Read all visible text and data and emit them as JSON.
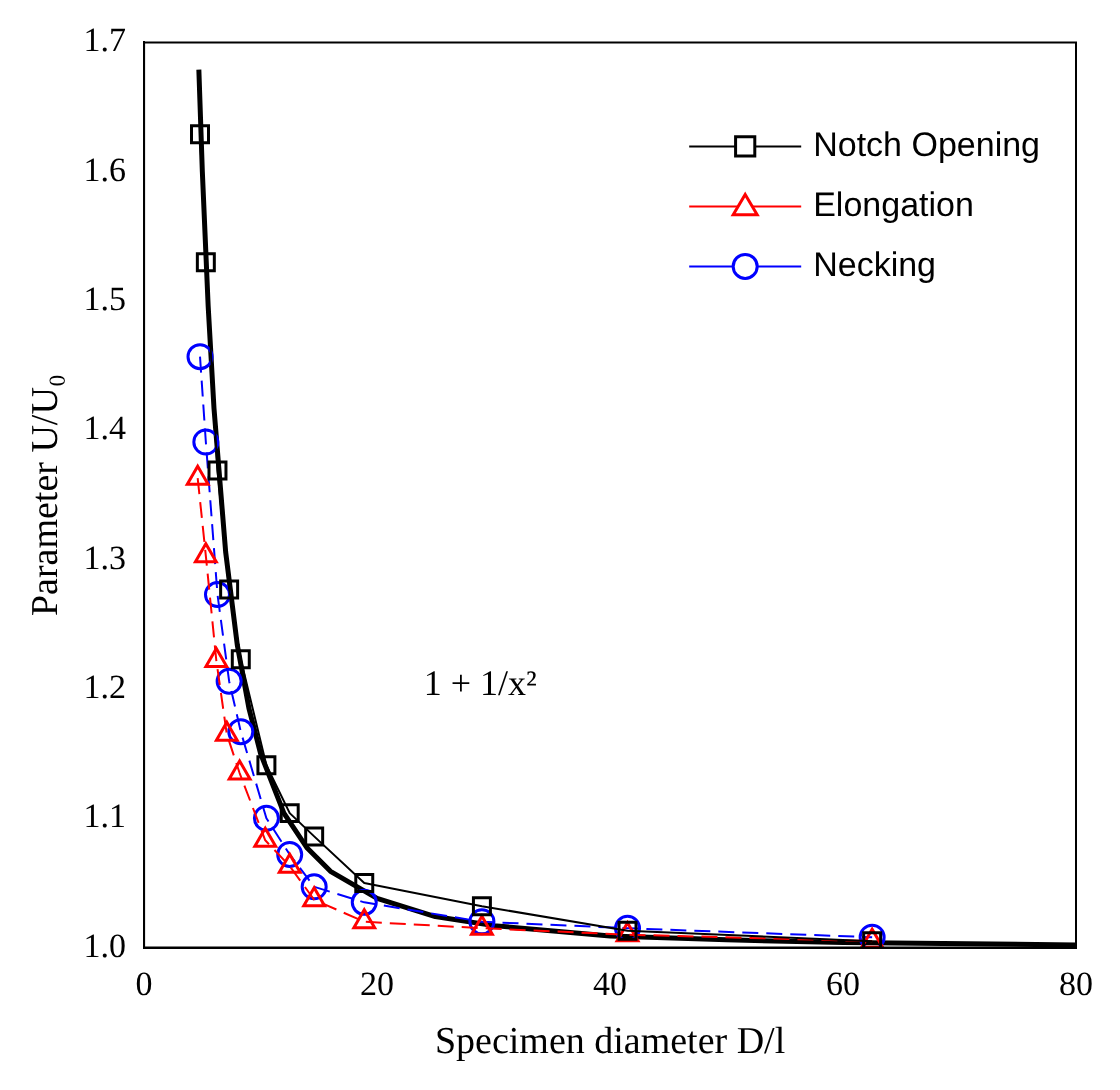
{
  "chart_data": {
    "type": "line",
    "xlabel": "Specimen diameter D/l",
    "ylabel": "Parameter U/U₀",
    "xlim": [
      0,
      80
    ],
    "xticks": [
      0,
      20,
      40,
      60,
      80
    ],
    "ylim": [
      1.0,
      1.7
    ],
    "yticks": [
      {
        "value": 1.0,
        "label": "1.0"
      },
      {
        "value": 1.1,
        "label": "1.1"
      },
      {
        "value": 1.2,
        "label": "1.2"
      },
      {
        "value": 1.3,
        "label": "1.3"
      },
      {
        "value": 1.4,
        "label": "1.4"
      },
      {
        "value": 1.5,
        "label": "1.5"
      },
      {
        "value": 1.6,
        "label": "1.6"
      },
      {
        "value": 1.7,
        "label": "1.7"
      }
    ],
    "grid": false,
    "legend": "top right",
    "annotations": [
      "1 + 1/x²"
    ],
    "series": [
      {
        "name": "Notch Opening",
        "color": "#000000",
        "marker": "square",
        "line_style": "solid",
        "x": [
          4.8,
          5.3,
          6.3,
          7.3,
          8.3,
          10.5,
          12.5,
          14.6,
          18.9,
          29,
          41.5,
          62.5
        ],
        "values": [
          1.629,
          1.53,
          1.369,
          1.277,
          1.223,
          1.141,
          1.104,
          1.086,
          1.05,
          1.032,
          1.013,
          1.005
        ]
      },
      {
        "name": "Elongation",
        "color": "#ff0000",
        "marker": "triangle",
        "line_style": "dashed",
        "x": [
          4.6,
          5.3,
          6.2,
          7.1,
          8.2,
          10.4,
          12.5,
          14.6,
          18.9,
          29,
          41.5,
          62.5
        ],
        "values": [
          1.363,
          1.303,
          1.222,
          1.165,
          1.135,
          1.083,
          1.063,
          1.037,
          1.02,
          1.015,
          1.01,
          1.005
        ]
      },
      {
        "name": "Necking",
        "color": "#0000ff",
        "marker": "circle",
        "line_style": "dashed",
        "x": [
          4.8,
          5.3,
          6.3,
          7.3,
          8.3,
          10.5,
          12.5,
          14.6,
          18.9,
          29,
          41.5,
          62.5
        ],
        "values": [
          1.457,
          1.391,
          1.273,
          1.206,
          1.167,
          1.1,
          1.072,
          1.047,
          1.035,
          1.02,
          1.015,
          1.008
        ]
      },
      {
        "color": "#000000",
        "marker": "none",
        "line_style": "solid",
        "x": [
          4.7,
          5,
          5.5,
          6,
          7,
          8,
          9,
          10,
          12,
          14,
          16,
          20,
          25,
          30,
          40,
          50,
          60,
          80
        ],
        "values": [
          1.679,
          1.6,
          1.496,
          1.417,
          1.306,
          1.234,
          1.185,
          1.15,
          1.104,
          1.077,
          1.059,
          1.038,
          1.024,
          1.017,
          1.009,
          1.006,
          1.004,
          1.002
        ]
      }
    ]
  }
}
